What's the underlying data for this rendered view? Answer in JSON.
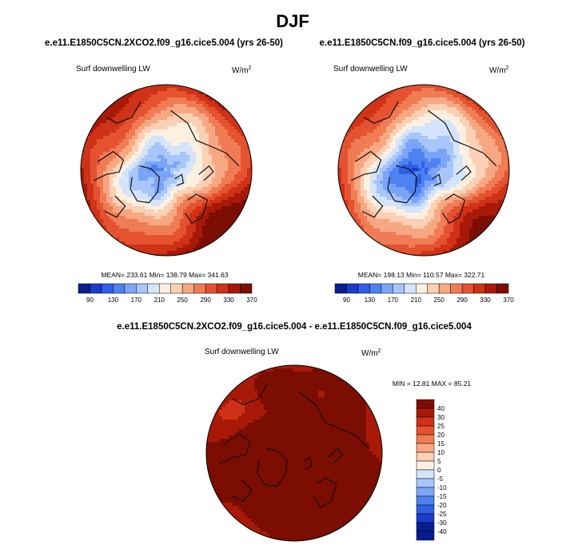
{
  "page_title": "DJF",
  "colors": {
    "scale": [
      "#081d8f",
      "#1b3cc8",
      "#2f5fe6",
      "#4e82f2",
      "#7aa5f7",
      "#a8c6fa",
      "#d3e4fb",
      "#fdf0e0",
      "#fbd0b4",
      "#f7a882",
      "#ef7c55",
      "#e5522f",
      "#cf3216",
      "#a81a07",
      "#7c0d02"
    ],
    "diff_scale": [
      "#081d8f",
      "#1b3cc8",
      "#2f5fe6",
      "#4e82f2",
      "#7aa5f7",
      "#a8c6fa",
      "#d3e4fb",
      "#fdf0e0",
      "#fbd0b4",
      "#f7a882",
      "#ef7c55",
      "#e5522f",
      "#cf3216",
      "#a81a07",
      "#7c0d02"
    ],
    "coast": "#111111"
  },
  "chart_data": [
    {
      "type": "heatmap",
      "projection": "north-polar-stereographic",
      "case_title": "e.e11.E1850C5CN.2XCO2.f09_g16.cice5.004 (yrs 26-50)",
      "variable": "Surf downwelling LW",
      "units_base": "W/m",
      "units_exp": "2",
      "stats": {
        "mean_label": "MEAN=",
        "mean": "233.61",
        "min_label": "Min=",
        "min": "138.79",
        "max_label": "Max=",
        "max": "341.63"
      },
      "colorbar": {
        "orientation": "horizontal",
        "levels": [
          "90",
          "130",
          "170",
          "210",
          "250",
          "290",
          "330",
          "370"
        ]
      },
      "field": {
        "pole": 175,
        "spread": 150,
        "mid": 232
      }
    },
    {
      "type": "heatmap",
      "projection": "north-polar-stereographic",
      "case_title": "e.e11.E1850C5CN.f09_g16.cice5.004 (yrs 26-50)",
      "variable": "Surf downwelling LW",
      "units_base": "W/m",
      "units_exp": "2",
      "stats": {
        "mean_label": "MEAN=",
        "mean": "198.13",
        "min_label": "Min=",
        "min": "110.57",
        "max_label": "Max=",
        "max": "322.71"
      },
      "colorbar": {
        "orientation": "horizontal",
        "levels": [
          "90",
          "130",
          "170",
          "210",
          "250",
          "290",
          "330",
          "370"
        ]
      },
      "field": {
        "pole": 145,
        "spread": 160,
        "mid": 198
      }
    },
    {
      "type": "heatmap",
      "projection": "north-polar-stereographic",
      "case_title": "e.e11.E1850C5CN.2XCO2.f09_g16.cice5.004 - e.e11.E1850C5CN.f09_g16.cice5.004",
      "variable": "Surf downwelling LW",
      "units_base": "W/m",
      "units_exp": "2",
      "stats": {
        "min_label": "MIN =",
        "min": "12.81",
        "max_label": "MAX =",
        "max": "85.21"
      },
      "colorbar": {
        "orientation": "vertical",
        "levels": [
          "40",
          "30",
          "25",
          "20",
          "15",
          "10",
          "5",
          "0",
          "-5",
          "-10",
          "-15",
          "-20",
          "-25",
          "-30",
          "-40"
        ]
      },
      "field": {
        "pole": 40,
        "spread": -14,
        "mid": 35
      }
    }
  ]
}
